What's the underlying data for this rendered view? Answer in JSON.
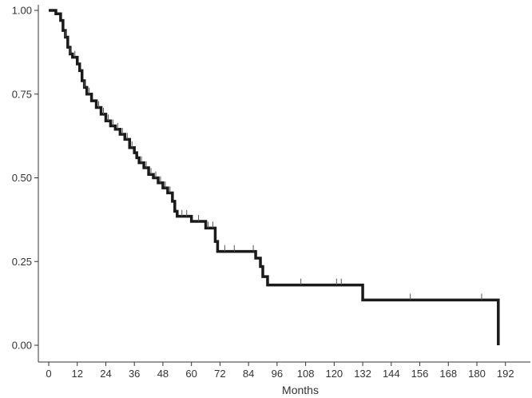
{
  "chart_data": {
    "type": "line",
    "chart_style": "step",
    "xlabel": "Months",
    "ylabel": "",
    "xlim": [
      0,
      204
    ],
    "ylim": [
      0,
      1
    ],
    "x_ticks": [
      0,
      12,
      24,
      36,
      48,
      60,
      72,
      84,
      96,
      108,
      120,
      132,
      144,
      156,
      168,
      180,
      192
    ],
    "x_tick_labels": [
      "0",
      "12",
      "24",
      "36",
      "48",
      "60",
      "72",
      "84",
      "96",
      "108",
      "120",
      "132",
      "144",
      "156",
      "168",
      "180",
      "192"
    ],
    "y_ticks": [
      0,
      0.25,
      0.5,
      0.75,
      1.0
    ],
    "y_tick_labels": [
      "0.00",
      "0.25",
      "0.50",
      "0.75",
      "1.00"
    ],
    "grid": false,
    "colors": {
      "line": "#1a1a1a",
      "axis": "#333333",
      "censor": "#555555"
    },
    "series": [
      {
        "x": [
          0,
          3,
          5,
          6,
          7,
          8,
          9,
          10,
          12,
          13,
          14,
          15,
          16,
          18,
          20,
          22,
          24,
          26,
          28,
          30,
          32,
          34,
          36,
          37,
          38,
          40,
          42,
          44,
          46,
          48,
          50,
          52,
          53,
          54,
          60,
          66,
          70,
          71,
          87,
          89,
          90,
          92,
          132,
          189
        ],
        "y": [
          1.0,
          0.99,
          0.97,
          0.94,
          0.92,
          0.89,
          0.87,
          0.86,
          0.84,
          0.82,
          0.79,
          0.77,
          0.75,
          0.73,
          0.71,
          0.69,
          0.67,
          0.655,
          0.645,
          0.63,
          0.615,
          0.59,
          0.575,
          0.56,
          0.545,
          0.53,
          0.51,
          0.5,
          0.485,
          0.47,
          0.455,
          0.43,
          0.4,
          0.385,
          0.37,
          0.35,
          0.31,
          0.28,
          0.26,
          0.235,
          0.205,
          0.18,
          0.135,
          0.0
        ]
      }
    ],
    "censored": [
      {
        "x": 7,
        "y": 0.92
      },
      {
        "x": 9,
        "y": 0.87
      },
      {
        "x": 11,
        "y": 0.86
      },
      {
        "x": 15,
        "y": 0.77
      },
      {
        "x": 17,
        "y": 0.75
      },
      {
        "x": 21,
        "y": 0.71
      },
      {
        "x": 23,
        "y": 0.69
      },
      {
        "x": 25,
        "y": 0.67
      },
      {
        "x": 27,
        "y": 0.655
      },
      {
        "x": 29,
        "y": 0.645
      },
      {
        "x": 31,
        "y": 0.63
      },
      {
        "x": 33,
        "y": 0.615
      },
      {
        "x": 35,
        "y": 0.59
      },
      {
        "x": 39,
        "y": 0.545
      },
      {
        "x": 41,
        "y": 0.53
      },
      {
        "x": 43,
        "y": 0.51
      },
      {
        "x": 45,
        "y": 0.5
      },
      {
        "x": 47,
        "y": 0.485
      },
      {
        "x": 49,
        "y": 0.47
      },
      {
        "x": 51,
        "y": 0.455
      },
      {
        "x": 56,
        "y": 0.385
      },
      {
        "x": 58,
        "y": 0.385
      },
      {
        "x": 63,
        "y": 0.37
      },
      {
        "x": 67,
        "y": 0.35
      },
      {
        "x": 69,
        "y": 0.35
      },
      {
        "x": 74,
        "y": 0.28
      },
      {
        "x": 78,
        "y": 0.28
      },
      {
        "x": 86,
        "y": 0.28
      },
      {
        "x": 106,
        "y": 0.18
      },
      {
        "x": 121,
        "y": 0.18
      },
      {
        "x": 123,
        "y": 0.18
      },
      {
        "x": 152,
        "y": 0.135
      },
      {
        "x": 182,
        "y": 0.135
      }
    ]
  }
}
